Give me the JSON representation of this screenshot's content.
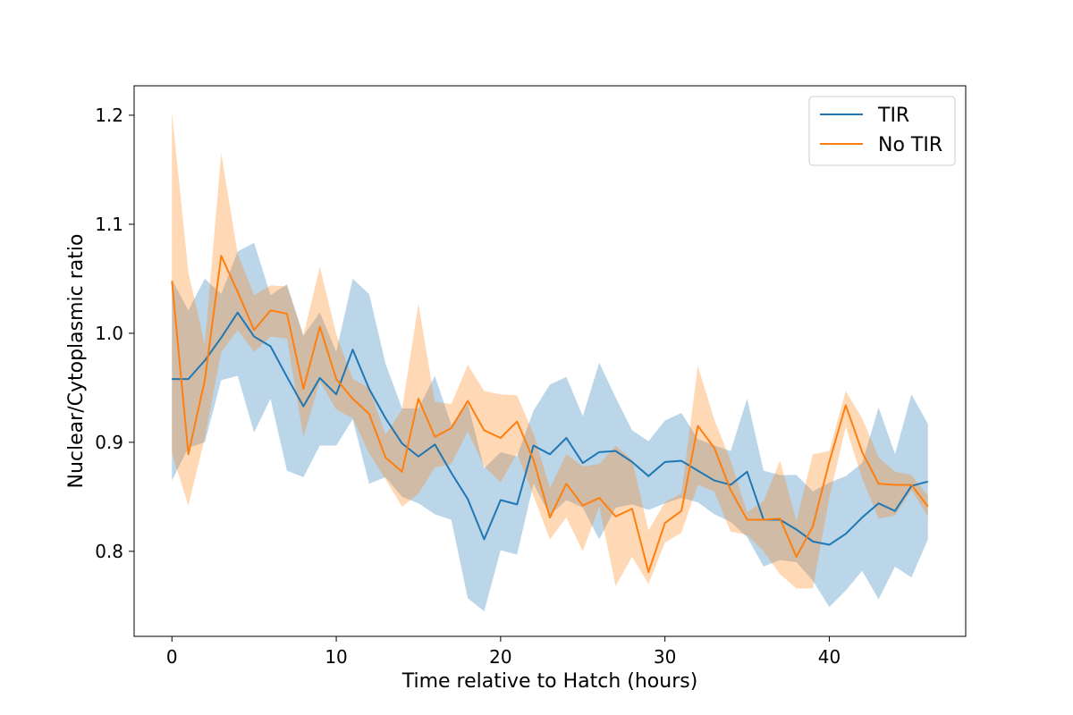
{
  "chart_data": {
    "type": "line",
    "xlabel": "Time relative to Hatch (hours)",
    "ylabel": "Nuclear/Cytoplasmic ratio",
    "xlim": [
      -2.3,
      48.3
    ],
    "ylim": [
      0.722,
      1.227
    ],
    "xticks": [
      0,
      10,
      20,
      30,
      40
    ],
    "yticks": [
      0.8,
      0.9,
      1.0,
      1.1,
      1.2
    ],
    "ytick_labels": [
      "0.8",
      "0.9",
      "1.0",
      "1.1",
      "1.2"
    ],
    "grid": false,
    "legend_position": "top-right",
    "x": [
      0,
      1,
      2,
      3,
      4,
      5,
      6,
      7,
      8,
      9,
      10,
      11,
      12,
      13,
      14,
      15,
      16,
      17,
      18,
      19,
      20,
      21,
      22,
      23,
      24,
      25,
      26,
      27,
      28,
      29,
      30,
      31,
      32,
      33,
      34,
      35,
      36,
      37,
      38,
      39,
      40,
      41,
      42,
      43,
      44,
      45,
      46
    ],
    "series": [
      {
        "name": "TIR",
        "color": "#1f77b4",
        "values": [
          0.958,
          0.958,
          0.975,
          0.996,
          1.019,
          0.997,
          0.988,
          0.96,
          0.933,
          0.959,
          0.944,
          0.985,
          0.949,
          0.922,
          0.899,
          0.887,
          0.898,
          0.872,
          0.848,
          0.811,
          0.847,
          0.843,
          0.897,
          0.889,
          0.904,
          0.881,
          0.891,
          0.892,
          0.882,
          0.869,
          0.882,
          0.883,
          0.874,
          0.865,
          0.861,
          0.873,
          0.829,
          0.829,
          0.82,
          0.809,
          0.806,
          0.816,
          0.831,
          0.844,
          0.837,
          0.86,
          0.864
        ],
        "lower": [
          0.865,
          0.895,
          0.9,
          0.957,
          0.961,
          0.909,
          0.94,
          0.874,
          0.868,
          0.897,
          0.897,
          0.921,
          0.862,
          0.868,
          0.85,
          0.844,
          0.834,
          0.829,
          0.757,
          0.745,
          0.801,
          0.797,
          0.862,
          0.833,
          0.847,
          0.84,
          0.811,
          0.84,
          0.843,
          0.838,
          0.844,
          0.849,
          0.845,
          0.834,
          0.827,
          0.813,
          0.786,
          0.792,
          0.79,
          0.773,
          0.749,
          0.764,
          0.782,
          0.756,
          0.786,
          0.776,
          0.811
        ],
        "upper": [
          1.049,
          1.021,
          1.05,
          1.036,
          1.075,
          1.083,
          1.035,
          1.045,
          0.998,
          1.019,
          0.983,
          1.05,
          1.036,
          0.972,
          0.931,
          0.931,
          0.961,
          0.916,
          0.936,
          0.876,
          0.891,
          0.887,
          0.929,
          0.953,
          0.96,
          0.924,
          0.973,
          0.941,
          0.911,
          0.901,
          0.92,
          0.927,
          0.903,
          0.897,
          0.892,
          0.94,
          0.874,
          0.87,
          0.87,
          0.855,
          0.863,
          0.869,
          0.881,
          0.932,
          0.889,
          0.944,
          0.917
        ]
      },
      {
        "name": "No TIR",
        "color": "#ff7f0e",
        "values": [
          1.048,
          0.889,
          0.957,
          1.071,
          1.038,
          1.003,
          1.021,
          1.018,
          0.949,
          1.006,
          0.958,
          0.94,
          0.926,
          0.886,
          0.873,
          0.94,
          0.905,
          0.913,
          0.938,
          0.911,
          0.904,
          0.919,
          0.884,
          0.831,
          0.862,
          0.842,
          0.849,
          0.832,
          0.839,
          0.781,
          0.826,
          0.837,
          0.915,
          0.895,
          0.856,
          0.829,
          0.829,
          0.83,
          0.795,
          0.823,
          0.882,
          0.934,
          0.891,
          0.862,
          0.861,
          0.861,
          0.841
        ],
        "lower": [
          0.89,
          0.842,
          0.904,
          0.983,
          1.003,
          0.983,
          0.997,
          0.995,
          0.905,
          0.956,
          0.93,
          0.922,
          0.89,
          0.866,
          0.841,
          0.853,
          0.877,
          0.88,
          0.91,
          0.878,
          0.863,
          0.89,
          0.851,
          0.811,
          0.831,
          0.8,
          0.841,
          0.768,
          0.795,
          0.77,
          0.808,
          0.817,
          0.861,
          0.855,
          0.818,
          0.815,
          0.8,
          0.779,
          0.766,
          0.766,
          0.849,
          0.914,
          0.867,
          0.83,
          0.833,
          0.856,
          0.832
        ],
        "upper": [
          1.203,
          1.056,
          0.99,
          1.165,
          1.073,
          1.035,
          1.044,
          1.043,
          0.998,
          1.061,
          0.999,
          0.958,
          0.95,
          0.907,
          0.93,
          1.027,
          0.937,
          0.935,
          0.971,
          0.947,
          0.944,
          0.943,
          0.908,
          0.858,
          0.889,
          0.878,
          0.88,
          0.897,
          0.884,
          0.819,
          0.845,
          0.853,
          0.97,
          0.921,
          0.883,
          0.836,
          0.846,
          0.883,
          0.828,
          0.889,
          0.892,
          0.947,
          0.922,
          0.886,
          0.873,
          0.87,
          0.851
        ]
      }
    ]
  }
}
